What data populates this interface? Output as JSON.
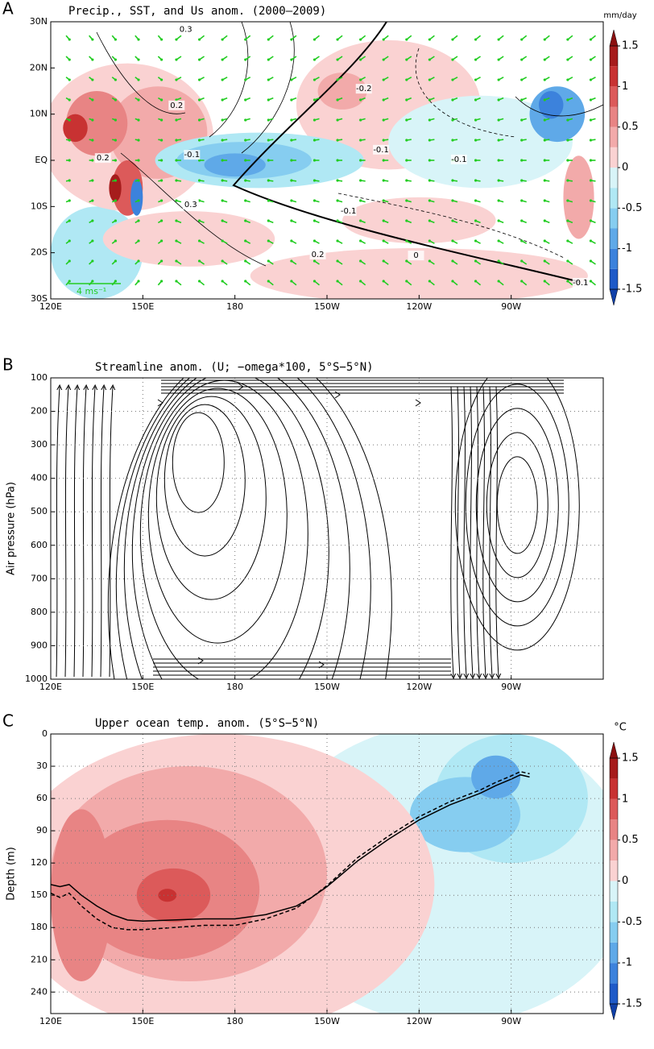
{
  "chart_data": [
    {
      "type": "contour_map",
      "panel_label": "A",
      "title": "Precip., SST, and Us anom. (2000–2009)",
      "xlim": [
        120,
        300
      ],
      "ylim": [
        -30,
        30
      ],
      "xticks": [
        {
          "value": 120,
          "label": "120E"
        },
        {
          "value": 150,
          "label": "150E"
        },
        180,
        {
          "value": 210,
          "label": "150W"
        },
        {
          "value": 240,
          "label": "120W"
        },
        {
          "value": 270,
          "label": "90W"
        }
      ],
      "yticks": [
        {
          "value": -30,
          "label": "30S"
        },
        {
          "value": -20,
          "label": "20S"
        },
        {
          "value": -10,
          "label": "10S"
        },
        {
          "value": 0,
          "label": "EQ"
        },
        {
          "value": 10,
          "label": "10N"
        },
        {
          "value": 20,
          "label": "20N"
        },
        {
          "value": 30,
          "label": "30N"
        }
      ],
      "colorbar": {
        "unit": "mm/day",
        "ticks": [
          -1.5,
          -1,
          -0.5,
          0,
          0.5,
          1,
          1.5
        ]
      },
      "contour_labels": [
        "0.3",
        "0.2",
        "-0.2",
        "0.2",
        "-0.1",
        "-0.1",
        "-0.1",
        "-0.1",
        "0.3",
        "0.2",
        "0",
        "-0.1"
      ],
      "vector_key": "4 ms⁻¹",
      "arrow_color": "#22cc22"
    },
    {
      "type": "streamline",
      "panel_label": "B",
      "title": "Streamline anom. (U; −omega*100, 5°S−5°N)",
      "ylabel": "Air pressure (hPa)",
      "xlim": [
        120,
        300
      ],
      "ylim": [
        1000,
        100
      ],
      "xticks": [
        {
          "value": 120,
          "label": "120E"
        },
        {
          "value": 150,
          "label": "150E"
        },
        180,
        {
          "value": 210,
          "label": "150W"
        },
        {
          "value": 240,
          "label": "120W"
        },
        {
          "value": 270,
          "label": "90W"
        }
      ],
      "yticks": [
        100,
        200,
        300,
        400,
        500,
        600,
        700,
        800,
        900,
        1000
      ],
      "grid": true
    },
    {
      "type": "line",
      "panel_label": "C",
      "title": "Upper ocean temp. anom. (5°S−5°N)",
      "ylabel": "Depth (m)",
      "xlim": [
        120,
        300
      ],
      "ylim": [
        260,
        0
      ],
      "xticks": [
        {
          "value": 120,
          "label": "120E"
        },
        {
          "value": 150,
          "label": "150E"
        },
        180,
        {
          "value": 210,
          "label": "150W"
        },
        {
          "value": 240,
          "label": "120W"
        },
        {
          "value": 270,
          "label": "90W"
        }
      ],
      "yticks": [
        0,
        30,
        60,
        90,
        120,
        150,
        180,
        210,
        240
      ],
      "grid": true,
      "colorbar": {
        "unit": "°C",
        "ticks": [
          -1.5,
          -1,
          -0.5,
          0,
          0.5,
          1,
          1.5
        ]
      },
      "x": [
        120,
        123,
        126,
        130,
        135,
        140,
        145,
        150,
        160,
        170,
        180,
        190,
        200,
        205,
        210,
        215,
        220,
        230,
        240,
        250,
        260,
        265,
        270,
        273,
        276
      ],
      "series": [
        {
          "color": "#000000",
          "dash": false,
          "values": [
            140,
            142,
            140,
            150,
            160,
            168,
            173,
            174,
            173,
            172,
            172,
            168,
            160,
            152,
            142,
            130,
            118,
            98,
            80,
            66,
            55,
            48,
            42,
            38,
            40
          ]
        },
        {
          "color": "#000000",
          "dash": true,
          "values": [
            148,
            152,
            148,
            160,
            172,
            180,
            182,
            182,
            180,
            178,
            178,
            172,
            162,
            152,
            141,
            128,
            115,
            95,
            77,
            63,
            52,
            45,
            39,
            35,
            37
          ]
        }
      ]
    }
  ]
}
